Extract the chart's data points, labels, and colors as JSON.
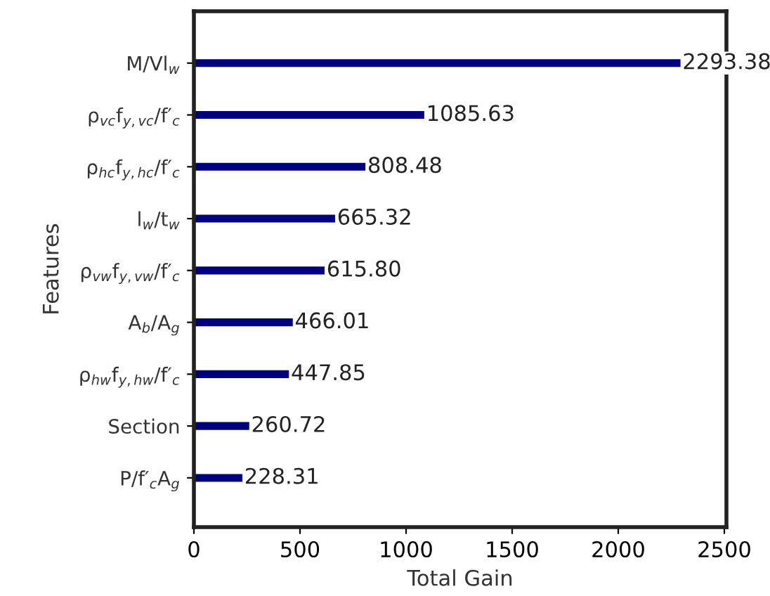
{
  "chart_data": {
    "type": "bar",
    "orientation": "horizontal",
    "xlabel": "Total Gain",
    "ylabel": "Features",
    "categories": [
      "M/Vl$_{w}$",
      "ρ$_{vc}$f$_{y,vc}$/f′$_{c}$",
      "ρ$_{hc}$f$_{y,hc}$/f′$_{c}$",
      "l$_{w}$/t$_{w}$",
      "ρ$_{vw}$f$_{y,vw}$/f′$_{c}$",
      "A$_{b}$/A$_{g}$",
      "ρ$_{hw}$f$_{y,hw}$/f′$_{c}$",
      "Section",
      "P/f′$_{c}$A$_{g}$"
    ],
    "values": [
      2293.38,
      1085.63,
      808.48,
      665.32,
      615.8,
      466.01,
      447.85,
      260.72,
      228.31
    ],
    "value_labels": [
      "2293.38",
      "1085.63",
      "808.48",
      "665.32",
      "615.80",
      "466.01",
      "447.85",
      "260.72",
      "228.31"
    ],
    "color": "#000080",
    "xlim": [
      0,
      2510
    ],
    "xticks": [
      0,
      500,
      1000,
      1500,
      2000,
      2500
    ],
    "grid": false,
    "legend": false
  }
}
